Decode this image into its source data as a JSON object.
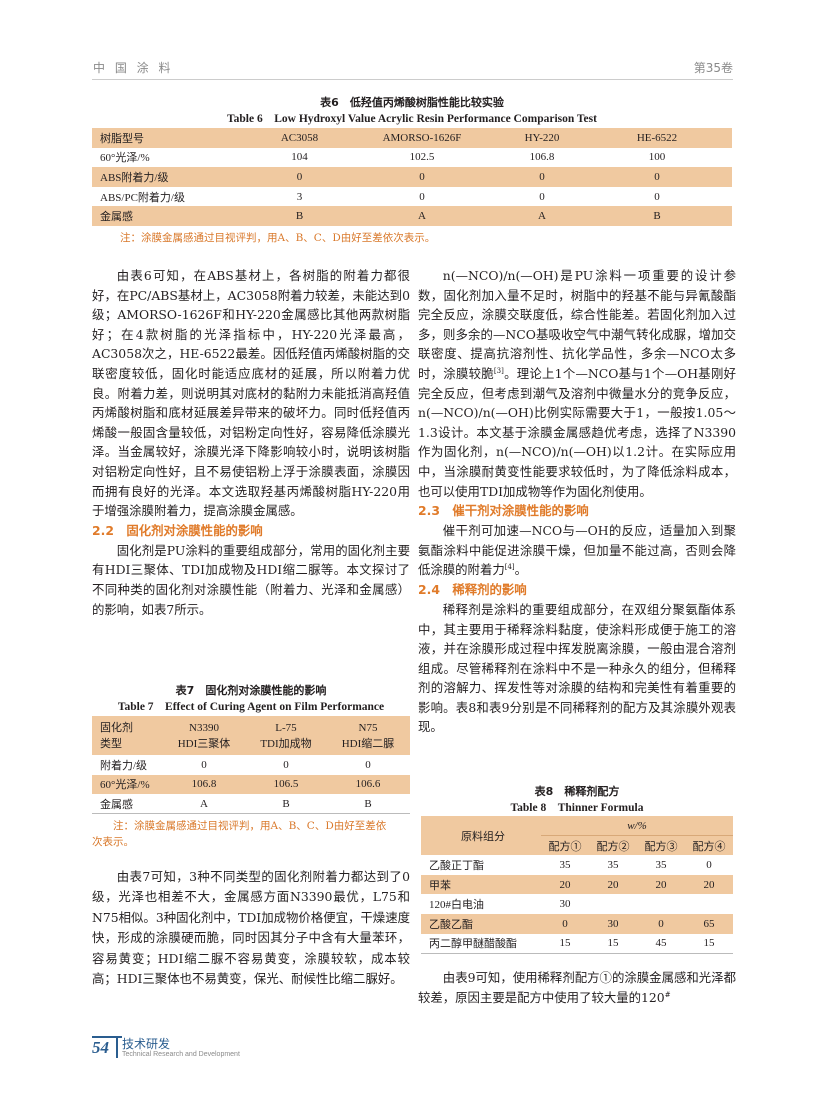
{
  "header": {
    "journal": "中 国 涂 料",
    "volume": "第35卷"
  },
  "table6": {
    "caption_cn": "表6　低羟值丙烯酸树脂性能比较实验",
    "caption_en": "Table 6　Low Hydroxyl Value Acrylic Resin Performance Comparison Test",
    "columns": [
      "树脂型号",
      "AC3058",
      "AMORSO-1626F",
      "HY-220",
      "HE-6522"
    ],
    "rows": [
      [
        "60°光泽/%",
        "104",
        "102.5",
        "106.8",
        "100"
      ],
      [
        "ABS附着力/级",
        "0",
        "0",
        "0",
        "0"
      ],
      [
        "ABS/PC附着力/级",
        "3",
        "0",
        "0",
        "0"
      ],
      [
        "金属感",
        "B",
        "A",
        "A",
        "B"
      ]
    ],
    "note": "注：涂膜金属感通过目视评判，用A、B、C、D由好至差依次表示。"
  },
  "left": {
    "p1": "由表6可知，在ABS基材上，各树脂的附着力都很好，在PC/ABS基材上，AC3058附着力较差，未能达到0级；AMORSO-1626F和HY-220金属感比其他两款树脂好；在4款树脂的光泽指标中，HY-220光泽最高，AC3058次之，HE-6522最差。因低羟值丙烯酸树脂的交联密度较低，固化时能适应底材的延展，所以附着力优良。附着力差，则说明其对底材的黏附力未能抵消高羟值丙烯酸树脂和底材延展差异带来的破坏力。同时低羟值丙烯酸一般固含量较低，对铝粉定向性好，容易降低涂膜光泽。当金属较好，涂膜光泽下降影响较小时，说明该树脂对铝粉定向性好，且不易使铝粉上浮于涂膜表面，涂膜因而拥有良好的光泽。本文选取羟基丙烯酸树脂HY-220用于增强涂膜附着力，提高涂膜金属感。",
    "h22": "2.2　固化剂对涂膜性能的影响",
    "p2": "固化剂是PU涂料的重要组成部分，常用的固化剂主要有HDI三聚体、TDI加成物及HDI缩二脲等。本文探讨了不同种类的固化剂对涂膜性能（附着力、光泽和金属感）的影响，如表7所示。",
    "p3": "由表7可知，3种不同类型的固化剂附着力都达到了0级，光泽也相差不大，金属感方面N3390最优，L75和N75相似。3种固化剂中，TDI加成物价格便宜，干燥速度快，形成的涂膜硬而脆，同时因其分子中含有大量苯环，容易黄变；HDI缩二脲不容易黄变，涂膜较软，成本较高；HDI三聚体也不易黄变，保光、耐候性比缩二脲好。"
  },
  "table7": {
    "caption_cn": "表7　固化剂对涂膜性能的影响",
    "caption_en": "Table 7　Effect of Curing Agent on Film Performance",
    "header": [
      [
        "固化剂",
        "类型"
      ],
      [
        "N3390",
        "HDI三聚体"
      ],
      [
        "L-75",
        "TDI加成物"
      ],
      [
        "N75",
        "HDI缩二脲"
      ]
    ],
    "rows": [
      [
        "附着力/级",
        "0",
        "0",
        "0"
      ],
      [
        "60°光泽/%",
        "106.8",
        "106.5",
        "106.6"
      ],
      [
        "金属感",
        "A",
        "B",
        "B"
      ]
    ],
    "note": "注：涂膜金属感通过目视评判，用A、B、C、D由好至差依次表示。"
  },
  "right": {
    "p1": [
      "n(—NCO)/n(—OH)是PU涂料一项重要的设计参数，固化剂加入量不足时，树脂中的羟基不能与异氰酸酯完全反应，涂膜交联度低，综合性能差。若固化剂加入过多，则多余的—NCO基吸收空气中潮气转化成脲，增加交联密度、提高抗溶剂性、抗化学品性，多余—NCO太多时，涂膜较脆",
      "[3]",
      "。理论上1个—NCO基与1个—OH基刚好完全反应，但考虑到潮气及溶剂中微量水分的竞争反应，n(—NCO)/n(—OH)比例实际需要大于1，一般按1.05～1.3设计。本文基于涂膜金属感趋优考虑，选择了N3390作为固化剂，n(—NCO)/n(—OH)以1.2计。在实际应用中，当涂膜耐黄变性能要求较低时，为了降低涂料成本，也可以使用TDI加成物等作为固化剂使用。"
    ],
    "h23": "2.3　催干剂对涂膜性能的影响",
    "p2": [
      "催干剂可加速—NCO与—OH的反应，适量加入到聚氨酯涂料中能促进涂膜干燥，但加量不能过高，否则会降低涂膜的附着力",
      "[4]",
      "。"
    ],
    "h24": "2.4　稀释剂的影响",
    "p3": "稀释剂是涂料的重要组成部分，在双组分聚氨酯体系中，其主要用于稀释涂料黏度，使涂料形成便于施工的溶液，并在涂膜形成过程中挥发脱离涂膜，一般由混合溶剂组成。尽管稀释剂在涂料中不是一种永久的组分，但稀释剂的溶解力、挥发性等对涂膜的结构和完美性有着重要的影响。表8和表9分别是不同稀释剂的配方及其涂膜外观表现。",
    "p4": [
      "由表9可知，使用稀释剂配方①的涂膜金属感和光泽都较差，原因主要是配方中使用了较大量的120",
      "#"
    ]
  },
  "table8": {
    "caption_cn": "表8　稀释剂配方",
    "caption_en": "Table 8　Thinner Formula",
    "label_header": "原料组分",
    "unit_header": "w/%",
    "formulas": [
      "配方①",
      "配方②",
      "配方③",
      "配方④"
    ],
    "rows": [
      [
        "乙酸正丁酯",
        "35",
        "35",
        "35",
        "0"
      ],
      [
        "甲苯",
        "20",
        "20",
        "20",
        "20"
      ],
      [
        "120#白电油",
        "30",
        "",
        "",
        ""
      ],
      [
        "乙酸乙酯",
        "0",
        "30",
        "0",
        "65"
      ],
      [
        "丙二醇甲醚醋酸酯",
        "15",
        "15",
        "45",
        "15"
      ]
    ]
  },
  "footer": {
    "page": "54",
    "section_cn": "技术研发",
    "section_en": "Technical Research and Development"
  },
  "colors": {
    "table_band": "#f0c9a0",
    "heading": "#e07b2a",
    "note": "#d9782a",
    "footer_blue": "#2a5d8f"
  }
}
